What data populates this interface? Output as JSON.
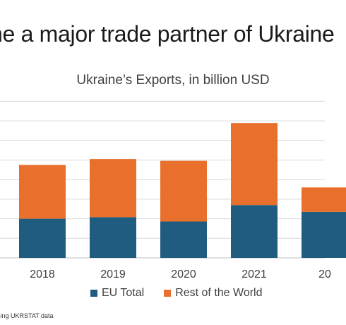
{
  "headline": "ne a major trade partner of Ukraine",
  "source_note": "sing UKRSTAT data",
  "colors": {
    "eu": "#1f5c80",
    "rest": "#e86f2c",
    "grid": "#d9d9d9",
    "axis": "#bfbfbf"
  },
  "chart_data": {
    "type": "bar",
    "stacked": true,
    "title": "Ukraine’s Exports, in billion USD",
    "categories": [
      "2018",
      "2019",
      "2020",
      "2021",
      "20"
    ],
    "series": [
      {
        "name": "EU Total",
        "values": [
          20.0,
          20.8,
          18.6,
          27.0,
          23.5
        ]
      },
      {
        "name": "Rest of the World",
        "values": [
          27.5,
          29.7,
          31.0,
          41.9,
          12.5
        ]
      }
    ],
    "ylim": [
      0,
      80
    ],
    "grid": true,
    "legend_position": "bottom"
  }
}
